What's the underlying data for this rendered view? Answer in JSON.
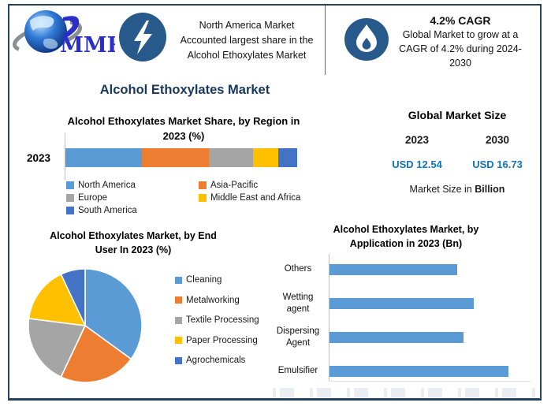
{
  "header": {
    "logo": {
      "text": "MMR"
    },
    "highlight": {
      "lines": [
        "North America Market",
        "Accounted largest share in the",
        "Alcohol Ethoxylates Market"
      ]
    },
    "cagr": {
      "title": "4.2% CAGR",
      "description_lines": [
        "Global Market to grow at a",
        "CAGR of 4.2% during 2024-",
        "2030"
      ]
    }
  },
  "main_title": "Alcohol Ethoxylates Market",
  "colors": {
    "title_navy": "#17375E",
    "value_blue": "#1274BC",
    "icon_circle": "#27598A",
    "border": "#25425E",
    "bar_blue": "#5B9BD5"
  },
  "market_size": {
    "title": "Global Market Size",
    "years": [
      "2023",
      "2030"
    ],
    "values": [
      "USD 12.54",
      "USD 16.73"
    ],
    "note_prefix": "Market Size in",
    "note_bold": "Billion"
  },
  "chart_data": [
    {
      "type": "bar",
      "subtype": "stacked-horizontal",
      "title": "Alcohol Ethoxylates Market Share, by Region in 2023 (%)",
      "categories": [
        "2023"
      ],
      "unit": "%",
      "xlim": [
        0,
        100
      ],
      "grid": false,
      "legend_position": "bottom",
      "series": [
        {
          "name": "North America",
          "color": "#5B9BD5",
          "values": [
            33
          ]
        },
        {
          "name": "Asia-Pacific",
          "color": "#ED7D31",
          "values": [
            29
          ]
        },
        {
          "name": "Europe",
          "color": "#A5A5A5",
          "values": [
            19
          ]
        },
        {
          "name": "Middle East and Africa",
          "color": "#FFC000",
          "values": [
            11
          ]
        },
        {
          "name": "South America",
          "color": "#4472C4",
          "values": [
            8
          ]
        }
      ]
    },
    {
      "type": "pie",
      "title": "Alcohol Ethoxylates Market, by End User In 2023 (%)",
      "labels": [
        "Cleaning",
        "Metalworking",
        "Textile Processing",
        "Paper Processing",
        "Agrochemicals"
      ],
      "values": [
        35,
        22,
        20,
        16,
        7
      ],
      "colors": [
        "#5B9BD5",
        "#ED7D31",
        "#A5A5A5",
        "#FFC000",
        "#4472C4"
      ],
      "start_angle_deg": 0,
      "legend_position": "right"
    },
    {
      "type": "bar",
      "subtype": "horizontal",
      "title": "Alcohol Ethoxylates Market, by Application in 2023 (Bn)",
      "categories": [
        "Others",
        "Wetting agent",
        "Dispersing Agent",
        "Emulsifier"
      ],
      "values": [
        3.0,
        3.4,
        3.15,
        4.2
      ],
      "bar_color": "#5B9BD5",
      "xlim": [
        0,
        4.8
      ],
      "grid": false
    }
  ]
}
